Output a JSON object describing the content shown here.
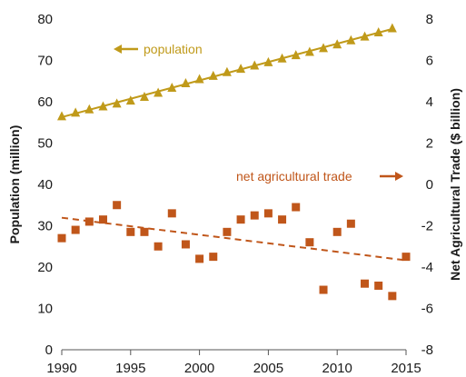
{
  "chart_data": {
    "type": "scatter",
    "title": "",
    "xlabel": "",
    "xlim": [
      1990,
      2015
    ],
    "x_ticks": [
      1990,
      1995,
      2000,
      2005,
      2010,
      2015
    ],
    "y_left": {
      "label": "Population (million)",
      "lim": [
        0,
        80
      ],
      "ticks": [
        0,
        10,
        20,
        30,
        40,
        50,
        60,
        70,
        80
      ]
    },
    "y_right": {
      "label": "Net Agricultural Trade ($ billion)",
      "lim": [
        -8,
        8
      ],
      "ticks": [
        -8,
        -6,
        -4,
        -2,
        0,
        2,
        4,
        6,
        8
      ]
    },
    "grid": false,
    "series": [
      {
        "name": "population",
        "axis": "left",
        "marker": "triangle",
        "color": "#c09a1a",
        "trendline": "linear",
        "x": [
          1990,
          1991,
          1992,
          1993,
          1994,
          1995,
          1996,
          1997,
          1998,
          1999,
          2000,
          2001,
          2002,
          2003,
          2004,
          2005,
          2006,
          2007,
          2008,
          2009,
          2010,
          2011,
          2012,
          2013,
          2014
        ],
        "y": [
          56.5,
          57.4,
          58.2,
          58.9,
          59.6,
          60.3,
          61.2,
          62.2,
          63.4,
          64.5,
          65.5,
          66.3,
          67.2,
          68.0,
          68.8,
          69.6,
          70.5,
          71.3,
          72.1,
          73.0,
          73.9,
          74.9,
          75.8,
          76.8,
          77.8
        ]
      },
      {
        "name": "net agricultural trade",
        "axis": "right",
        "marker": "square",
        "color": "#c0561a",
        "trendline": "linear",
        "x": [
          1990,
          1991,
          1992,
          1993,
          1994,
          1995,
          1996,
          1997,
          1998,
          1999,
          2000,
          2001,
          2002,
          2003,
          2004,
          2005,
          2006,
          2007,
          2008,
          2009,
          2010,
          2011,
          2012,
          2013,
          2014,
          2015
        ],
        "y": [
          -2.6,
          -2.2,
          -1.8,
          -1.7,
          -1.0,
          -2.3,
          -2.3,
          -3.0,
          -1.4,
          -2.9,
          -3.6,
          -3.5,
          -2.3,
          -1.7,
          -1.5,
          -1.4,
          -1.7,
          -1.1,
          -2.8,
          -5.1,
          -2.3,
          -1.9,
          -4.8,
          -4.9,
          -5.4,
          -3.5
        ]
      }
    ],
    "annotations": [
      {
        "text": "population",
        "series": "population",
        "arrow": "left"
      },
      {
        "text": "net agricultural trade",
        "series": "net agricultural trade",
        "arrow": "right"
      }
    ]
  }
}
